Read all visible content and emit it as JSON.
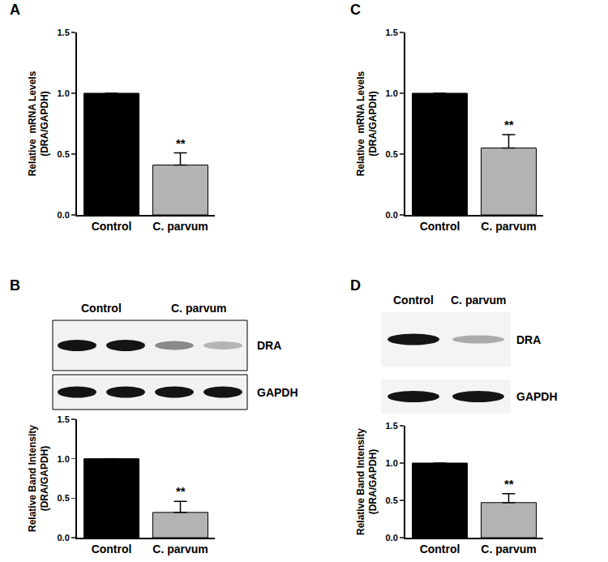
{
  "chart_data": [
    {
      "type": "bar",
      "title": "A",
      "categories": [
        "Control",
        "C. parvum"
      ],
      "values": [
        1.0,
        0.41
      ],
      "errors": [
        0,
        0.1
      ],
      "colors": [
        "#000000",
        "#b3b3b3"
      ],
      "y_label": "Relative  mRNA Levels\n(DRA/GAPDH)",
      "ylim": [
        0,
        1.5
      ],
      "yticks": [
        {
          "value": 0,
          "label": "0.0"
        },
        {
          "value": 0.5,
          "label": "0.5"
        },
        {
          "value": 1,
          "label": "1.0"
        },
        {
          "value": 1.5,
          "label": "1.5"
        }
      ],
      "grid": false,
      "annotations": [
        {
          "text": "**",
          "x": "C. parvum"
        }
      ]
    },
    {
      "type": "bar",
      "title": "B",
      "categories": [
        "Control",
        "C. parvum"
      ],
      "values": [
        1.0,
        0.32
      ],
      "errors": [
        0,
        0.14
      ],
      "colors": [
        "#000000",
        "#b3b3b3"
      ],
      "y_label": "Relative Band Intensity\n(DRA/GAPDH)",
      "ylim": [
        0,
        1.5
      ],
      "yticks": [
        {
          "value": 0,
          "label": "0.0"
        },
        {
          "value": 0.5,
          "label": "0.5"
        },
        {
          "value": 1,
          "label": "1.0"
        },
        {
          "value": 1.5,
          "label": "1.5"
        }
      ],
      "grid": false,
      "annotations": [
        {
          "text": "**",
          "x": "C. parvum"
        }
      ]
    },
    {
      "type": "bar",
      "title": "C",
      "categories": [
        "Control",
        "C. parvum"
      ],
      "values": [
        1.0,
        0.55
      ],
      "errors": [
        0,
        0.11
      ],
      "colors": [
        "#000000",
        "#b3b3b3"
      ],
      "y_label": "Relative  mRNA Levels\n(DRA/GAPDH)",
      "ylim": [
        0,
        1.5
      ],
      "yticks": [
        {
          "value": 0,
          "label": "0.0"
        },
        {
          "value": 0.5,
          "label": "0.5"
        },
        {
          "value": 1,
          "label": "1.0"
        },
        {
          "value": 1.5,
          "label": "1.5"
        }
      ],
      "grid": false,
      "annotations": [
        {
          "text": "**",
          "x": "C. parvum"
        }
      ]
    },
    {
      "type": "bar",
      "title": "D",
      "categories": [
        "Control",
        "C. parvum"
      ],
      "values": [
        1.0,
        0.47
      ],
      "errors": [
        0,
        0.12
      ],
      "colors": [
        "#000000",
        "#b3b3b3"
      ],
      "y_label": "Relative Band Intensity\n(DRA/GAPDH)",
      "ylim": [
        0,
        1.5
      ],
      "yticks": [
        {
          "value": 0,
          "label": "0.0"
        },
        {
          "value": 0.5,
          "label": "0.5"
        },
        {
          "value": 1,
          "label": "1.0"
        },
        {
          "value": 1.5,
          "label": "1.5"
        }
      ],
      "grid": false,
      "annotations": [
        {
          "text": "**",
          "x": "C. parvum"
        }
      ]
    }
  ],
  "blots": {
    "B": {
      "lanes": [
        "Control",
        "C. parvum"
      ],
      "rows": [
        "DRA",
        "GAPDH"
      ]
    },
    "D": {
      "lanes": [
        "Control",
        "C. parvum"
      ],
      "rows": [
        "DRA",
        "GAPDH"
      ]
    }
  }
}
